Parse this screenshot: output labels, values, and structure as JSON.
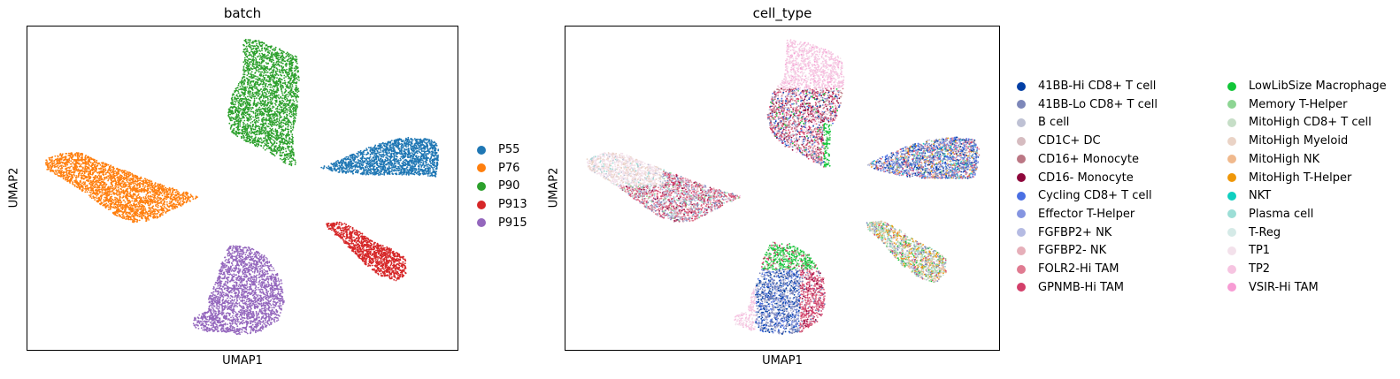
{
  "chart_data": [
    {
      "type": "scatter",
      "title": "batch",
      "xlabel": "UMAP1",
      "ylabel": "UMAP2",
      "grid": false,
      "legend_position": "right",
      "series": [
        {
          "name": "P55",
          "color": "#1f77b4"
        },
        {
          "name": "P76",
          "color": "#ff7f0e"
        },
        {
          "name": "P90",
          "color": "#2ca02c"
        },
        {
          "name": "P913",
          "color": "#d62728"
        },
        {
          "name": "P915",
          "color": "#9467bd"
        }
      ]
    },
    {
      "type": "scatter",
      "title": "cell_type",
      "xlabel": "UMAP1",
      "ylabel": "UMAP2",
      "grid": false,
      "legend_position": "right",
      "series": [
        {
          "name": "41BB-Hi CD8+ T cell",
          "color": "#023fa5"
        },
        {
          "name": "41BB-Lo CD8+ T cell",
          "color": "#7d87b9"
        },
        {
          "name": "B cell",
          "color": "#bec1d4"
        },
        {
          "name": "CD1C+ DC",
          "color": "#d6bcc0"
        },
        {
          "name": "CD16+ Monocyte",
          "color": "#bb7784"
        },
        {
          "name": "CD16- Monocyte",
          "color": "#8e063b"
        },
        {
          "name": "Cycling CD8+ T cell",
          "color": "#4a6fe3"
        },
        {
          "name": "Effector T-Helper",
          "color": "#8595e1"
        },
        {
          "name": "FGFBP2+ NK",
          "color": "#b5bbe3"
        },
        {
          "name": "FGFBP2- NK",
          "color": "#e6afb9"
        },
        {
          "name": "FOLR2-Hi TAM",
          "color": "#e07b91"
        },
        {
          "name": "GPNMB-Hi TAM",
          "color": "#d33f6a"
        },
        {
          "name": "LowLibSize Macrophage",
          "color": "#11c638"
        },
        {
          "name": "Memory T-Helper",
          "color": "#8dd593"
        },
        {
          "name": "MitoHigh CD8+ T cell",
          "color": "#c6dec7"
        },
        {
          "name": "MitoHigh Myeloid",
          "color": "#ead3c6"
        },
        {
          "name": "MitoHigh NK",
          "color": "#f0b98d"
        },
        {
          "name": "MitoHigh T-Helper",
          "color": "#ef9708"
        },
        {
          "name": "NKT",
          "color": "#0fcfc0"
        },
        {
          "name": "Plasma cell",
          "color": "#9cded6"
        },
        {
          "name": "T-Reg",
          "color": "#d5eae7"
        },
        {
          "name": "TP1",
          "color": "#f3e1eb"
        },
        {
          "name": "TP2",
          "color": "#f6c4e1"
        },
        {
          "name": "VSIR-Hi TAM",
          "color": "#f79cd4"
        }
      ]
    }
  ]
}
